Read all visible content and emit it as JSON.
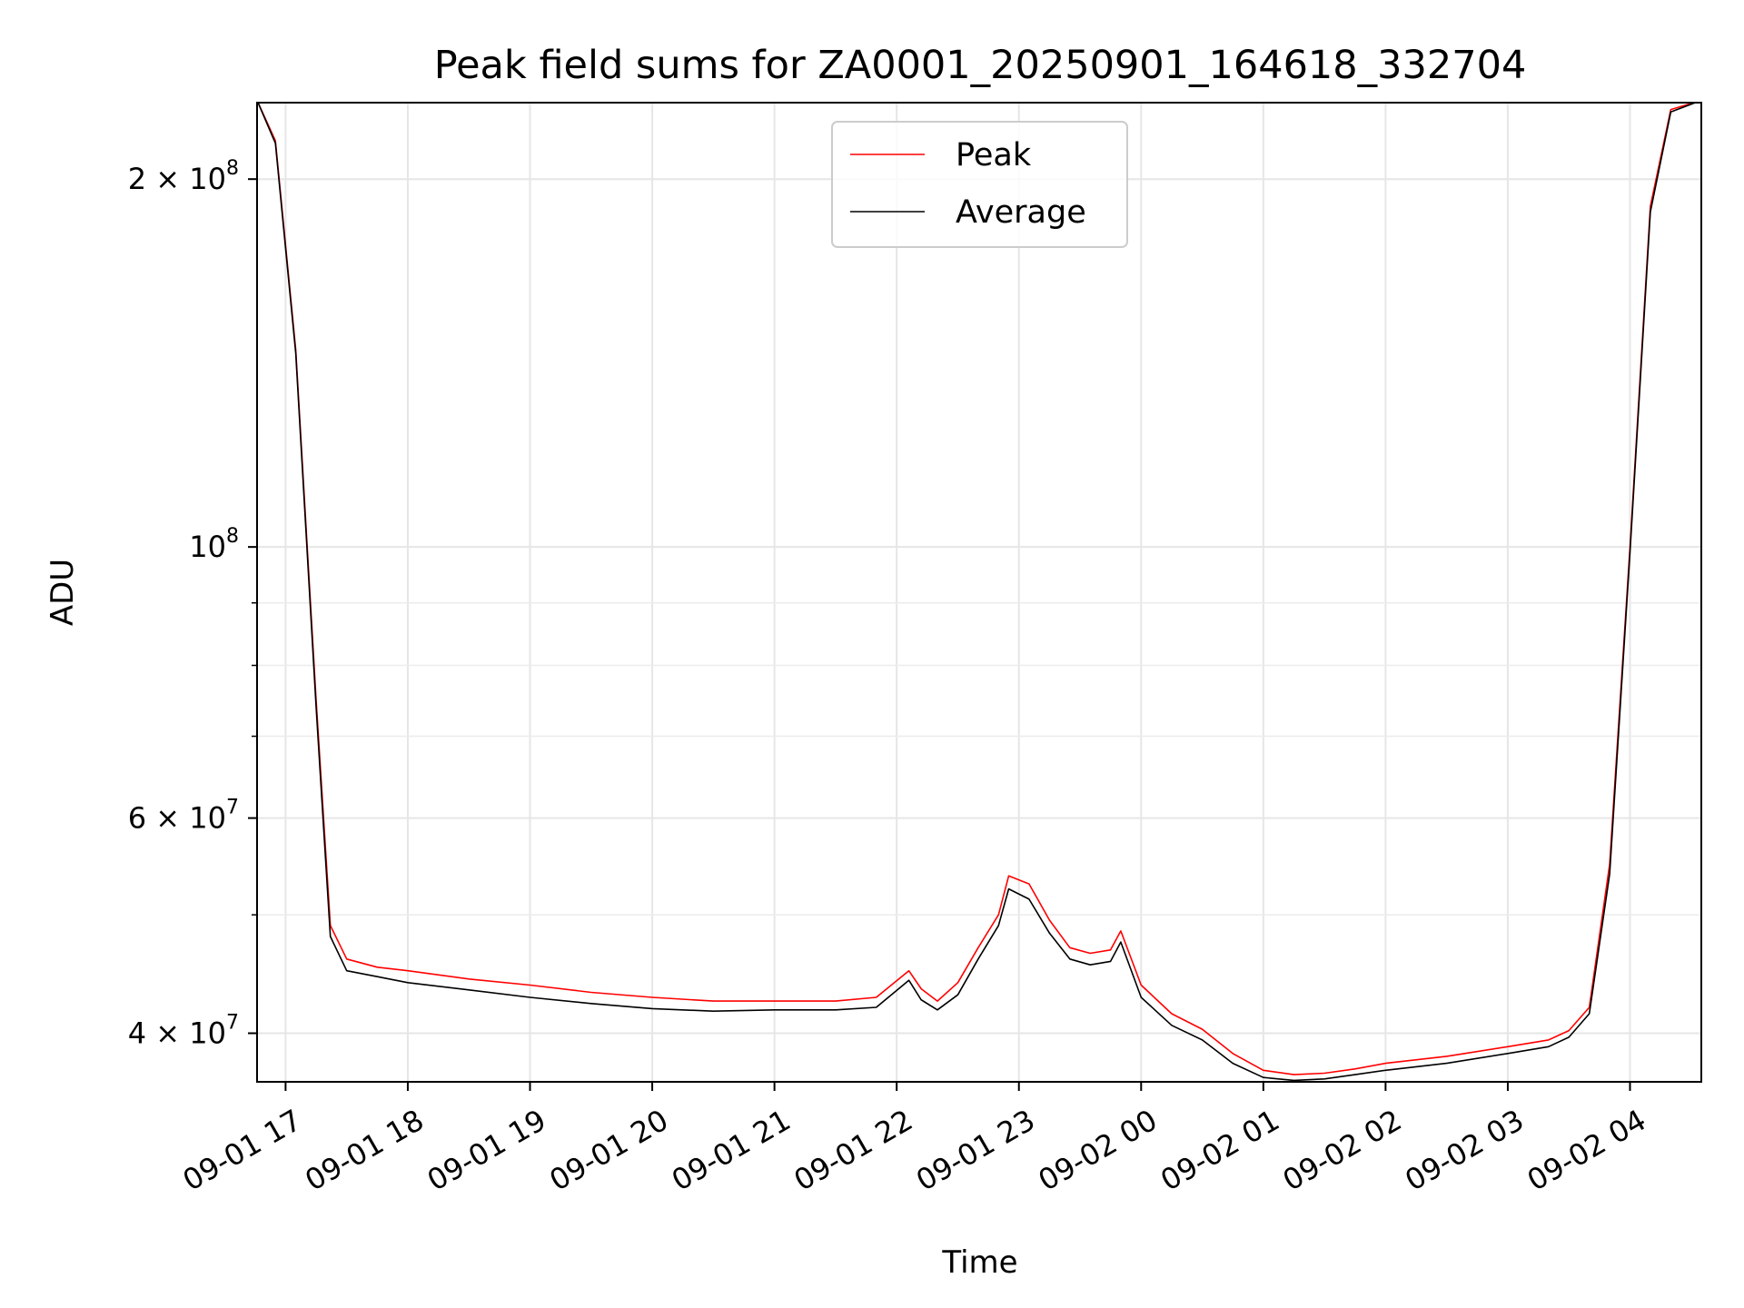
{
  "chart_data": {
    "type": "line",
    "title": "Peak field sums for ZA0001_20250901_164618_332704",
    "xlabel": "Time",
    "ylabel": "ADU",
    "yscale": "log",
    "ylim": [
      36500000,
      231000000
    ],
    "xlim": [
      "2025-09-01 16:46:00",
      "2025-09-02 04:35:00"
    ],
    "grid": true,
    "legend_position": "upper center",
    "x_ticks": [
      "09-01 17",
      "09-01 18",
      "09-01 19",
      "09-01 20",
      "09-01 21",
      "09-01 22",
      "09-01 23",
      "09-02 00",
      "09-02 01",
      "09-02 02",
      "09-02 03",
      "09-02 04"
    ],
    "y_ticks": [
      {
        "value": 40000000,
        "mantissa": "4 × 10",
        "exp": "7"
      },
      {
        "value": 60000000,
        "mantissa": "6 × 10",
        "exp": "7"
      },
      {
        "value": 100000000,
        "mantissa": "10",
        "exp": "8"
      },
      {
        "value": 200000000,
        "mantissa": "2 × 10",
        "exp": "8"
      }
    ],
    "y_minor_ticks": [
      50000000,
      70000000,
      80000000,
      90000000
    ],
    "series": [
      {
        "name": "Peak",
        "color": "#ff0000",
        "x": [
          "2025-09-01 16:46",
          "2025-09-01 16:55",
          "2025-09-01 17:05",
          "2025-09-01 17:15",
          "2025-09-01 17:22",
          "2025-09-01 17:30",
          "2025-09-01 17:45",
          "2025-09-01 18:00",
          "2025-09-01 18:30",
          "2025-09-01 19:00",
          "2025-09-01 19:30",
          "2025-09-01 20:00",
          "2025-09-01 20:30",
          "2025-09-01 21:00",
          "2025-09-01 21:30",
          "2025-09-01 21:50",
          "2025-09-01 22:06",
          "2025-09-01 22:12",
          "2025-09-01 22:20",
          "2025-09-01 22:30",
          "2025-09-01 22:40",
          "2025-09-01 22:50",
          "2025-09-01 22:55",
          "2025-09-01 23:05",
          "2025-09-01 23:15",
          "2025-09-01 23:25",
          "2025-09-01 23:35",
          "2025-09-01 23:45",
          "2025-09-01 23:50",
          "2025-09-02 00:00",
          "2025-09-02 00:15",
          "2025-09-02 00:30",
          "2025-09-02 00:45",
          "2025-09-02 01:00",
          "2025-09-02 01:15",
          "2025-09-02 01:30",
          "2025-09-02 01:45",
          "2025-09-02 02:00",
          "2025-09-02 02:30",
          "2025-09-02 03:00",
          "2025-09-02 03:20",
          "2025-09-02 03:30",
          "2025-09-02 03:40",
          "2025-09-02 03:50",
          "2025-09-02 04:00",
          "2025-09-02 04:10",
          "2025-09-02 04:20",
          "2025-09-02 04:35"
        ],
        "y": [
          232000000,
          215000000,
          145000000,
          75000000,
          49000000,
          46000000,
          45300000,
          45000000,
          44300000,
          43800000,
          43200000,
          42800000,
          42500000,
          42500000,
          42500000,
          42800000,
          45000000,
          43500000,
          42500000,
          44000000,
          47000000,
          50000000,
          53800000,
          53000000,
          49500000,
          47000000,
          46500000,
          46800000,
          48500000,
          43800000,
          41500000,
          40300000,
          38500000,
          37300000,
          37000000,
          37100000,
          37400000,
          37800000,
          38300000,
          39000000,
          39500000,
          40200000,
          42000000,
          55000000,
          100000000,
          190000000,
          228000000,
          232000000
        ]
      },
      {
        "name": "Average",
        "color": "#000000",
        "x": [
          "2025-09-01 16:46",
          "2025-09-01 16:55",
          "2025-09-01 17:05",
          "2025-09-01 17:15",
          "2025-09-01 17:22",
          "2025-09-01 17:30",
          "2025-09-01 17:45",
          "2025-09-01 18:00",
          "2025-09-01 18:30",
          "2025-09-01 19:00",
          "2025-09-01 19:30",
          "2025-09-01 20:00",
          "2025-09-01 20:30",
          "2025-09-01 21:00",
          "2025-09-01 21:30",
          "2025-09-01 21:50",
          "2025-09-01 22:06",
          "2025-09-01 22:12",
          "2025-09-01 22:20",
          "2025-09-01 22:30",
          "2025-09-01 22:40",
          "2025-09-01 22:50",
          "2025-09-01 22:55",
          "2025-09-01 23:05",
          "2025-09-01 23:15",
          "2025-09-01 23:25",
          "2025-09-01 23:35",
          "2025-09-01 23:45",
          "2025-09-01 23:50",
          "2025-09-02 00:00",
          "2025-09-02 00:15",
          "2025-09-02 00:30",
          "2025-09-02 00:45",
          "2025-09-02 01:00",
          "2025-09-02 01:15",
          "2025-09-02 01:30",
          "2025-09-02 01:45",
          "2025-09-02 02:00",
          "2025-09-02 02:30",
          "2025-09-02 03:00",
          "2025-09-02 03:20",
          "2025-09-02 03:30",
          "2025-09-02 03:40",
          "2025-09-02 03:50",
          "2025-09-02 04:00",
          "2025-09-02 04:10",
          "2025-09-02 04:20",
          "2025-09-02 04:35"
        ],
        "y": [
          232000000,
          214000000,
          144000000,
          74000000,
          48000000,
          45000000,
          44500000,
          44000000,
          43400000,
          42800000,
          42300000,
          41900000,
          41700000,
          41800000,
          41800000,
          42000000,
          44200000,
          42600000,
          41800000,
          43000000,
          46000000,
          49000000,
          52500000,
          51500000,
          48300000,
          46000000,
          45500000,
          45800000,
          47500000,
          42800000,
          40600000,
          39500000,
          37800000,
          36800000,
          36600000,
          36700000,
          37000000,
          37300000,
          37800000,
          38500000,
          39000000,
          39700000,
          41500000,
          54000000,
          99000000,
          188000000,
          227000000,
          232000000
        ]
      }
    ]
  }
}
